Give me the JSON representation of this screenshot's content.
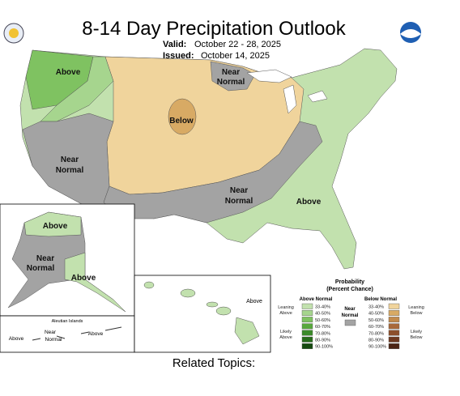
{
  "header": {
    "title": "8-14 Day Precipitation Outlook",
    "valid_label": "Valid:",
    "valid_dates": "October 22 - 28, 2025",
    "issued_label": "Issued:",
    "issued_date": "October 14, 2025"
  },
  "conus_labels": {
    "northwest": "Above",
    "north_central": [
      "Near",
      "Normal"
    ],
    "central": "Below",
    "west": [
      "Near",
      "Normal"
    ],
    "south": [
      "Near",
      "Normal"
    ],
    "southeast": "Above"
  },
  "alaska_labels": {
    "north": "Above",
    "west": [
      "Near",
      "Normal"
    ],
    "southeast": "Above"
  },
  "aleutian_labels": {
    "title": "Aleutian Islands",
    "west": "Above",
    "middle": [
      "Near",
      "Normal"
    ],
    "east": "Above"
  },
  "hawaii_labels": {
    "east": "Above"
  },
  "legend": {
    "title": "Probability",
    "subtitle": "(Percent Chance)",
    "above_header": "Above Normal",
    "below_header": "Below Normal",
    "leaning_above": [
      "Leaning",
      "Above"
    ],
    "likely_above": [
      "Likely",
      "Above"
    ],
    "near_normal": [
      "Near",
      "Normal"
    ],
    "near_color": "#a3a3a3",
    "leaning_below": [
      "Leaning",
      "Below"
    ],
    "likely_below": [
      "Likely",
      "Below"
    ],
    "above_rows": [
      {
        "range": "33-40%",
        "color": "#c2e1ae"
      },
      {
        "range": "40-50%",
        "color": "#a6d58e"
      },
      {
        "range": "50-60%",
        "color": "#7fc261"
      },
      {
        "range": "60-70%",
        "color": "#58a83d"
      },
      {
        "range": "70-80%",
        "color": "#3b8a2a"
      },
      {
        "range": "80-90%",
        "color": "#276c1b"
      },
      {
        "range": "90-100%",
        "color": "#144a0e"
      }
    ],
    "below_rows": [
      {
        "range": "33-40%",
        "color": "#f0d49c"
      },
      {
        "range": "40-50%",
        "color": "#d8aa64"
      },
      {
        "range": "50-60%",
        "color": "#c28a4c"
      },
      {
        "range": "60-70%",
        "color": "#a8693a"
      },
      {
        "range": "70-80%",
        "color": "#8c4f2c"
      },
      {
        "range": "80-90%",
        "color": "#6e3820"
      },
      {
        "range": "90-100%",
        "color": "#4c2414"
      }
    ]
  },
  "footer": {
    "related_topics": "Related Topics:"
  }
}
